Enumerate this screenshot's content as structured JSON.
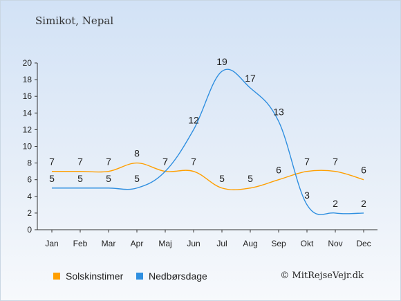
{
  "title": "Simikot, Nepal",
  "credit": "© MitRejseVejr.dk",
  "chart_data": {
    "type": "line",
    "categories": [
      "Jan",
      "Feb",
      "Mar",
      "Apr",
      "Maj",
      "Jun",
      "Jul",
      "Aug",
      "Sep",
      "Okt",
      "Nov",
      "Dec"
    ],
    "ylim": [
      0,
      20
    ],
    "yticks": [
      0,
      2,
      4,
      6,
      8,
      10,
      12,
      14,
      16,
      18,
      20
    ],
    "series": [
      {
        "name": "Solskinstimer",
        "color": "#ff9f00",
        "values": [
          7,
          7,
          7,
          8,
          7,
          7,
          5,
          5,
          6,
          7,
          7,
          6
        ]
      },
      {
        "name": "Nedbørsdage",
        "color": "#2f8fe0",
        "values": [
          5,
          5,
          5,
          5,
          7,
          12,
          19,
          17,
          13,
          3,
          2,
          2
        ]
      }
    ]
  }
}
